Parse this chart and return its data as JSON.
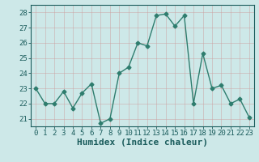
{
  "x": [
    0,
    1,
    2,
    3,
    4,
    5,
    6,
    7,
    8,
    9,
    10,
    11,
    12,
    13,
    14,
    15,
    16,
    17,
    18,
    19,
    20,
    21,
    22,
    23
  ],
  "y": [
    23,
    22,
    22,
    22.8,
    21.7,
    22.7,
    23.3,
    20.7,
    21.0,
    24.0,
    24.4,
    26.0,
    25.8,
    27.8,
    27.9,
    27.1,
    27.8,
    22.0,
    25.3,
    23.0,
    23.2,
    22.0,
    22.3,
    21.1
  ],
  "line_color": "#2e7d6e",
  "marker": "D",
  "markersize": 2.5,
  "linewidth": 1.0,
  "bg_color": "#cde8e8",
  "grid_color": "#aacccc",
  "xlabel": "Humidex (Indice chaleur)",
  "xlim": [
    -0.5,
    23.5
  ],
  "ylim": [
    20.5,
    28.5
  ],
  "yticks": [
    21,
    22,
    23,
    24,
    25,
    26,
    27,
    28
  ],
  "xticks": [
    0,
    1,
    2,
    3,
    4,
    5,
    6,
    7,
    8,
    9,
    10,
    11,
    12,
    13,
    14,
    15,
    16,
    17,
    18,
    19,
    20,
    21,
    22,
    23
  ],
  "tick_fontsize": 6.5,
  "xlabel_fontsize": 8,
  "label_color": "#1a5c5c"
}
